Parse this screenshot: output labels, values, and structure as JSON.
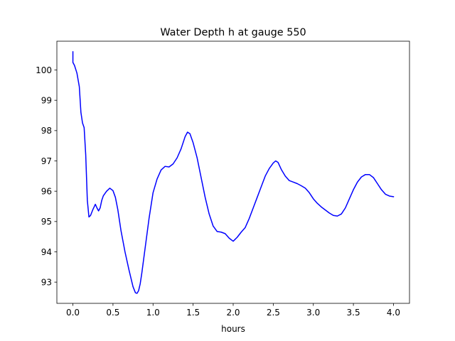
{
  "chart_data": {
    "type": "line",
    "title": "Water Depth h at gauge 550",
    "xlabel": "hours",
    "ylabel": "",
    "xlim": [
      -0.2,
      4.2
    ],
    "ylim": [
      92.3,
      100.95
    ],
    "xticks": [
      0.0,
      0.5,
      1.0,
      1.5,
      2.0,
      2.5,
      3.0,
      3.5,
      4.0
    ],
    "xtick_labels": [
      "0.0",
      "0.5",
      "1.0",
      "1.5",
      "2.0",
      "2.5",
      "3.0",
      "3.5",
      "4.0"
    ],
    "yticks": [
      93,
      94,
      95,
      96,
      97,
      98,
      99,
      100
    ],
    "ytick_labels": [
      "93",
      "94",
      "95",
      "96",
      "97",
      "98",
      "99",
      "100"
    ],
    "grid": false,
    "legend": "none",
    "series": [
      {
        "color": "#0000ff",
        "x": [
          0.0,
          0.0,
          0.02,
          0.05,
          0.08,
          0.1,
          0.12,
          0.14,
          0.16,
          0.18,
          0.2,
          0.22,
          0.25,
          0.28,
          0.3,
          0.32,
          0.34,
          0.36,
          0.38,
          0.42,
          0.46,
          0.5,
          0.53,
          0.56,
          0.6,
          0.65,
          0.7,
          0.75,
          0.78,
          0.8,
          0.82,
          0.84,
          0.86,
          0.9,
          0.95,
          1.0,
          1.05,
          1.1,
          1.15,
          1.2,
          1.25,
          1.3,
          1.35,
          1.4,
          1.43,
          1.46,
          1.48,
          1.5,
          1.55,
          1.6,
          1.65,
          1.7,
          1.75,
          1.8,
          1.85,
          1.9,
          1.95,
          2.0,
          2.05,
          2.1,
          2.15,
          2.2,
          2.25,
          2.3,
          2.35,
          2.4,
          2.45,
          2.5,
          2.53,
          2.56,
          2.6,
          2.65,
          2.7,
          2.75,
          2.8,
          2.85,
          2.9,
          2.95,
          3.0,
          3.05,
          3.1,
          3.15,
          3.2,
          3.25,
          3.3,
          3.35,
          3.4,
          3.45,
          3.5,
          3.55,
          3.6,
          3.65,
          3.7,
          3.75,
          3.8,
          3.85,
          3.9,
          3.95,
          4.0
        ],
        "y": [
          100.6,
          100.25,
          100.15,
          99.9,
          99.45,
          98.6,
          98.25,
          98.1,
          97.2,
          95.7,
          95.15,
          95.2,
          95.4,
          95.57,
          95.45,
          95.35,
          95.45,
          95.7,
          95.85,
          96.0,
          96.1,
          96.02,
          95.8,
          95.4,
          94.7,
          94.0,
          93.4,
          92.85,
          92.65,
          92.63,
          92.72,
          92.95,
          93.3,
          94.1,
          95.1,
          95.95,
          96.4,
          96.7,
          96.82,
          96.8,
          96.9,
          97.1,
          97.4,
          97.8,
          97.95,
          97.9,
          97.75,
          97.6,
          97.1,
          96.45,
          95.8,
          95.25,
          94.85,
          94.67,
          94.65,
          94.6,
          94.45,
          94.35,
          94.48,
          94.65,
          94.8,
          95.1,
          95.45,
          95.8,
          96.15,
          96.5,
          96.75,
          96.93,
          97.0,
          96.95,
          96.72,
          96.5,
          96.35,
          96.3,
          96.25,
          96.18,
          96.1,
          95.95,
          95.75,
          95.6,
          95.48,
          95.38,
          95.28,
          95.2,
          95.18,
          95.25,
          95.45,
          95.75,
          96.05,
          96.3,
          96.47,
          96.55,
          96.55,
          96.45,
          96.25,
          96.05,
          95.9,
          95.84,
          95.82
        ]
      }
    ]
  }
}
